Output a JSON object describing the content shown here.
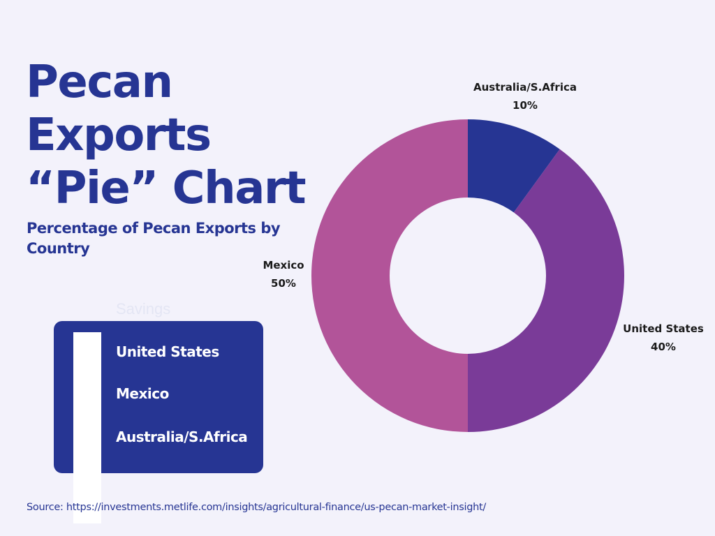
{
  "title_lines": [
    "Pecan",
    "Exports",
    "“Pie” Chart"
  ],
  "subtitle": "Percentage of Pecan Exports by Country",
  "legend": {
    "title": "Savings",
    "items": [
      {
        "label": "United States",
        "color": "#7a3b98"
      },
      {
        "label": "Mexico",
        "color": "#b25499"
      },
      {
        "label": "Australia/S.Africa",
        "color": "#263593"
      }
    ]
  },
  "source": "Source: https://investments.metlife.com/insights/agricultural-finance/us-pecan-market-insight/",
  "chart_data": {
    "type": "pie",
    "donut": true,
    "title": "Pecan Exports “Pie” Chart",
    "subtitle": "Percentage of Pecan Exports by Country",
    "legend_position": "bottom-left",
    "slices": [
      {
        "label": "Australia/S.Africa",
        "value": 10,
        "value_label": "10%",
        "color": "#263593"
      },
      {
        "label": "United States",
        "value": 40,
        "value_label": "40%",
        "color": "#7a3b98"
      },
      {
        "label": "Mexico",
        "value": 50,
        "value_label": "50%",
        "color": "#b25499"
      }
    ]
  }
}
